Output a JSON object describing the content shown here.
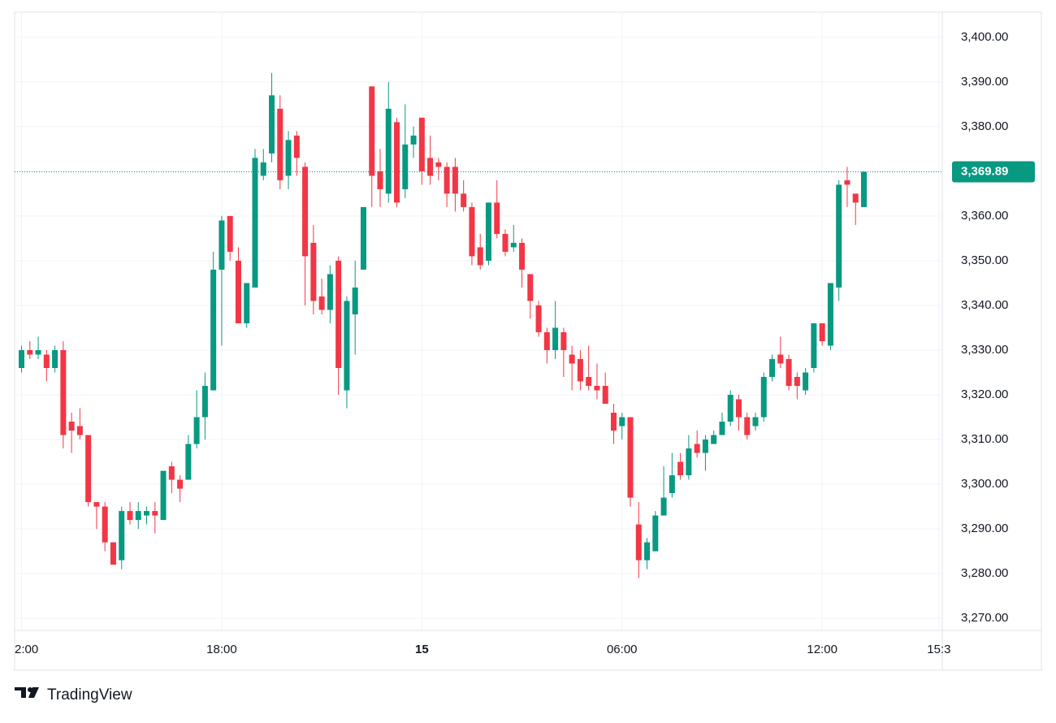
{
  "chart_data": {
    "type": "candlestick",
    "x": [
      0,
      1,
      2,
      3,
      4,
      5,
      6,
      7,
      8,
      9,
      10,
      11,
      12,
      13,
      14,
      15,
      16,
      17,
      18,
      19,
      20,
      21,
      22,
      23,
      24,
      25,
      26,
      27,
      28,
      29,
      30,
      31,
      32,
      33,
      34,
      35,
      36,
      37,
      38,
      39,
      40,
      41,
      42,
      43,
      44,
      45,
      46,
      47,
      48,
      49,
      50,
      51,
      52,
      53,
      54,
      55,
      56,
      57,
      58,
      59,
      60,
      61,
      62,
      63,
      64,
      65,
      66,
      67,
      68,
      69,
      70,
      71,
      72,
      73,
      74,
      75,
      76,
      77,
      78,
      79,
      80,
      81,
      82,
      83,
      84,
      85,
      86,
      87,
      88,
      89,
      90,
      91,
      92,
      93,
      94,
      95,
      96,
      97,
      98,
      99,
      100,
      101
    ],
    "open": [
      3326,
      3330,
      3329,
      3329,
      3326,
      3330,
      3314,
      3313,
      3311,
      3296,
      3295,
      3287,
      3283,
      3294,
      3292,
      3293,
      3294,
      3292,
      3304,
      3301,
      3301,
      3309,
      3315,
      3321,
      3348,
      3360,
      3350,
      3336,
      3344,
      3369,
      3374,
      3384,
      3369,
      3378,
      3371,
      3354,
      3342,
      3339,
      3350,
      3321,
      3338,
      3348,
      3389,
      3370,
      3365,
      3381,
      3366,
      3376,
      3382,
      3373,
      3372,
      3371,
      3371,
      3365,
      3362,
      3353,
      3350,
      3363,
      3356,
      3353,
      3354,
      3347,
      3340,
      3334,
      3330,
      3334,
      3329,
      3328,
      3324,
      3322,
      3322,
      3316,
      3313,
      3315,
      3291,
      3283,
      3285,
      3293,
      3298,
      3305,
      3302,
      3309,
      3307,
      3309,
      3311,
      3314,
      3319,
      3315,
      3313,
      3315,
      3324,
      3329,
      3328,
      3324,
      3321,
      3326,
      3336,
      3331,
      3344,
      3368,
      3365,
      3362
    ],
    "high": [
      3331,
      3332,
      3333,
      3330,
      3331,
      3332,
      3316,
      3317,
      3311,
      3296,
      3296,
      3287,
      3295,
      3296,
      3296,
      3295,
      3296,
      3303,
      3305,
      3302,
      3311,
      3321,
      3325,
      3352,
      3360,
      3360,
      3353,
      3345,
      3375,
      3375,
      3392,
      3387,
      3379,
      3379,
      3372,
      3358,
      3346,
      3349,
      3351,
      3342,
      3350,
      3362,
      3389,
      3375,
      3390,
      3382,
      3385,
      3380,
      3382,
      3378,
      3373,
      3372,
      3373,
      3368,
      3363,
      3356,
      3363,
      3368,
      3357,
      3358,
      3355,
      3347,
      3341,
      3335,
      3341,
      3335,
      3331,
      3330,
      3331,
      3327,
      3325,
      3318,
      3316,
      3315,
      3296,
      3288,
      3294,
      3304,
      3307,
      3307,
      3311,
      3312,
      3311,
      3312,
      3316,
      3321,
      3320,
      3316,
      3316,
      3325,
      3329,
      3333,
      3329,
      3325,
      3326,
      3336,
      3336,
      3345,
      3368,
      3371,
      3365,
      3370
    ],
    "low": [
      3325,
      3328,
      3328,
      3323,
      3325,
      3308,
      3307,
      3310,
      3295,
      3290,
      3285,
      3282,
      3281,
      3291,
      3290,
      3291,
      3289,
      3292,
      3298,
      3296,
      3301,
      3308,
      3310,
      3321,
      3331,
      3350,
      3336,
      3335,
      3344,
      3368,
      3372,
      3366,
      3366,
      3369,
      3340,
      3338,
      3338,
      3336,
      3320,
      3317,
      3329,
      3348,
      3362,
      3362,
      3363,
      3362,
      3364,
      3373,
      3367,
      3367,
      3368,
      3362,
      3361,
      3361,
      3349,
      3348,
      3349,
      3355,
      3351,
      3352,
      3344,
      3337,
      3333,
      3327,
      3328,
      3324,
      3321,
      3321,
      3321,
      3319,
      3318,
      3309,
      3310,
      3295,
      3279,
      3281,
      3285,
      3293,
      3297,
      3301,
      3301,
      3306,
      3303,
      3309,
      3311,
      3313,
      3312,
      3310,
      3312,
      3314,
      3323,
      3326,
      3321,
      3319,
      3320,
      3325,
      3331,
      3330,
      3341,
      3362,
      3358,
      3362
    ],
    "close": [
      3330,
      3329,
      3330,
      3326,
      3330,
      3311,
      3312,
      3311,
      3296,
      3295,
      3287,
      3282,
      3294,
      3292,
      3294,
      3294,
      3293,
      3303,
      3301,
      3299,
      3309,
      3315,
      3322,
      3348,
      3359,
      3352,
      3336,
      3345,
      3373,
      3372,
      3387,
      3368,
      3377,
      3373,
      3351,
      3341,
      3339,
      3347,
      3326,
      3341,
      3344,
      3362,
      3369,
      3366,
      3384,
      3363,
      3376,
      3378,
      3370,
      3369,
      3371,
      3365,
      3365,
      3362,
      3351,
      3349,
      3363,
      3356,
      3352,
      3354,
      3348,
      3341,
      3334,
      3330,
      3335,
      3330,
      3327,
      3323,
      3322,
      3321,
      3318,
      3312,
      3315,
      3297,
      3283,
      3287,
      3293,
      3297,
      3302,
      3302,
      3308,
      3307,
      3310,
      3311,
      3314,
      3320,
      3315,
      3311,
      3315,
      3324,
      3328,
      3327,
      3322,
      3322,
      3325,
      3336,
      3332,
      3345,
      3367,
      3367,
      3363,
      3369.89
    ],
    "up_color": "#089981",
    "down_color": "#f23645",
    "xlim": [
      -0.83,
      110.4
    ],
    "xticks": [
      {
        "value": 0,
        "label": "2:00"
      },
      {
        "value": 24,
        "label": "18:00"
      },
      {
        "value": 48,
        "label": "15"
      },
      {
        "value": 72,
        "label": "06:00"
      },
      {
        "value": 96,
        "label": "12:00"
      },
      {
        "value": 110,
        "label": "15:3"
      }
    ],
    "ylim": [
      3267.3,
      3405.6
    ],
    "yticks": [
      {
        "value": 3400,
        "label": "3,400.00"
      },
      {
        "value": 3390,
        "label": "3,390.00"
      },
      {
        "value": 3380,
        "label": "3,380.00"
      },
      {
        "value": 3370,
        "label": "3,370.00"
      },
      {
        "value": 3360,
        "label": "3,360.00"
      },
      {
        "value": 3350,
        "label": "3,350.00"
      },
      {
        "value": 3340,
        "label": "3,340.00"
      },
      {
        "value": 3330,
        "label": "3,330.00"
      },
      {
        "value": 3320,
        "label": "3,320.00"
      },
      {
        "value": 3310,
        "label": "3,310.00"
      },
      {
        "value": 3300,
        "label": "3,300.00"
      },
      {
        "value": 3290,
        "label": "3,290.00"
      },
      {
        "value": 3280,
        "label": "3,280.00"
      },
      {
        "value": 3270,
        "label": "3,270.00"
      }
    ],
    "grid": true,
    "current_price": {
      "value": 3369.89,
      "label": "3,369.89"
    }
  },
  "brand": "TradingView"
}
